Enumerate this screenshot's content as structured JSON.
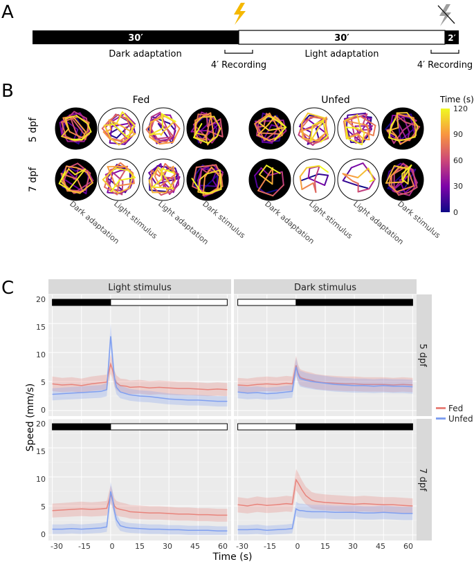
{
  "panel_a": {
    "label": "A",
    "dark_duration": "30′",
    "light_duration": "30′",
    "end_duration": "2′",
    "dark_label": "Dark adaptation",
    "light_label": "Light adaptation",
    "recording_1": "4′ Recording",
    "recording_2": "4′ Recording",
    "flash_icon_color": "#f5b800",
    "off_icon_color": "#9e9e9e"
  },
  "panel_b": {
    "label": "B",
    "group_fed": "Fed",
    "group_unfed": "Unfed",
    "row_labels": [
      "5 dpf",
      "7 dpf"
    ],
    "col_labels": [
      "Dark adaptation",
      "Light stimulus",
      "Light adaptation",
      "Dark stimulus",
      "Dark adaptation",
      "Light stimulus",
      "Light adaptation",
      "Dark stimulus"
    ],
    "colorbar": {
      "title": "Time (s)",
      "ticks": [
        "120",
        "90",
        "60",
        "30",
        "0"
      ],
      "min": 0,
      "max": 120
    }
  },
  "panel_c": {
    "label": "C",
    "strip_light": "Light stimulus",
    "strip_dark": "Dark stimulus",
    "row_5": "5 dpf",
    "row_7": "7 dpf",
    "ylabel": "Speed (mm/s)",
    "xlabel": "Time (s)",
    "y_ticks": [
      "20",
      "15",
      "10",
      "5",
      "0"
    ],
    "x_ticks": [
      "-30",
      "-15",
      "0",
      "15",
      "30",
      "45",
      "60"
    ],
    "legend": [
      {
        "name": "Fed",
        "color": "#e8837b"
      },
      {
        "name": "Unfed",
        "color": "#7f9ff0"
      }
    ]
  },
  "chart_data": {
    "type": "line",
    "title": "",
    "xlabel": "Time (s)",
    "ylabel": "Speed (mm/s)",
    "xlim": [
      -32,
      62
    ],
    "ylim": [
      0,
      20
    ],
    "x": [
      -30,
      -25,
      -20,
      -15,
      -10,
      -5,
      -2,
      0,
      1,
      2,
      3,
      5,
      8,
      10,
      15,
      20,
      25,
      30,
      35,
      40,
      45,
      50,
      55,
      60
    ],
    "panels": [
      {
        "facet": "Light stimulus",
        "row": "5 dpf",
        "series": [
          {
            "name": "Fed",
            "values": [
              4.6,
              4.4,
              4.5,
              4.3,
              4.6,
              4.8,
              4.9,
              8.0,
              7.0,
              5.5,
              4.8,
              4.3,
              4.2,
              4.0,
              4.1,
              3.9,
              4.0,
              3.9,
              3.8,
              3.8,
              3.7,
              3.6,
              3.7,
              3.6
            ]
          },
          {
            "name": "Unfed",
            "values": [
              2.8,
              2.9,
              3.0,
              3.1,
              3.2,
              3.3,
              3.6,
              12.8,
              9.0,
              5.5,
              4.0,
              3.2,
              2.9,
              2.7,
              2.5,
              2.4,
              2.2,
              2.0,
              1.9,
              1.8,
              1.8,
              1.7,
              1.6,
              1.6
            ]
          }
        ]
      },
      {
        "facet": "Dark stimulus",
        "row": "5 dpf",
        "series": [
          {
            "name": "Fed",
            "values": [
              4.4,
              4.3,
              4.5,
              4.6,
              4.5,
              4.7,
              4.6,
              7.8,
              6.5,
              5.8,
              5.6,
              5.4,
              5.2,
              5.0,
              4.8,
              4.7,
              4.6,
              4.6,
              4.5,
              4.5,
              4.5,
              4.4,
              4.5,
              4.4
            ]
          },
          {
            "name": "Unfed",
            "values": [
              3.2,
              3.0,
              3.1,
              2.9,
              3.0,
              3.2,
              3.3,
              7.5,
              6.2,
              5.5,
              5.4,
              5.2,
              5.0,
              4.9,
              4.7,
              4.5,
              4.4,
              4.3,
              4.3,
              4.2,
              4.3,
              4.2,
              4.2,
              4.1
            ]
          }
        ]
      },
      {
        "facet": "Light stimulus",
        "row": "7 dpf",
        "series": [
          {
            "name": "Fed",
            "values": [
              4.2,
              4.3,
              4.4,
              4.5,
              4.4,
              4.5,
              4.6,
              7.0,
              6.0,
              5.0,
              4.6,
              4.4,
              4.2,
              4.0,
              3.9,
              3.8,
              3.8,
              3.7,
              3.6,
              3.6,
              3.5,
              3.5,
              3.4,
              3.4
            ]
          },
          {
            "name": "Unfed",
            "values": [
              1.0,
              1.0,
              1.1,
              1.0,
              1.1,
              1.2,
              1.4,
              7.5,
              6.2,
              4.0,
              2.6,
              1.6,
              1.3,
              1.2,
              1.1,
              1.0,
              1.0,
              0.9,
              0.9,
              0.8,
              0.8,
              0.8,
              0.7,
              0.7
            ]
          }
        ]
      },
      {
        "facet": "Dark stimulus",
        "row": "7 dpf",
        "series": [
          {
            "name": "Fed",
            "values": [
              5.2,
              5.0,
              5.3,
              5.1,
              5.2,
              5.4,
              5.3,
              9.5,
              9.0,
              8.4,
              7.8,
              6.8,
              6.0,
              5.8,
              5.6,
              5.5,
              5.4,
              5.3,
              5.4,
              5.3,
              5.2,
              5.2,
              5.1,
              5.0
            ]
          },
          {
            "name": "Unfed",
            "values": [
              0.9,
              0.9,
              1.0,
              0.8,
              0.9,
              1.0,
              1.1,
              4.5,
              4.3,
              4.2,
              4.2,
              4.1,
              4.0,
              4.0,
              4.0,
              3.9,
              3.9,
              3.9,
              3.8,
              3.8,
              3.9,
              3.8,
              3.7,
              3.7
            ]
          }
        ]
      }
    ]
  }
}
